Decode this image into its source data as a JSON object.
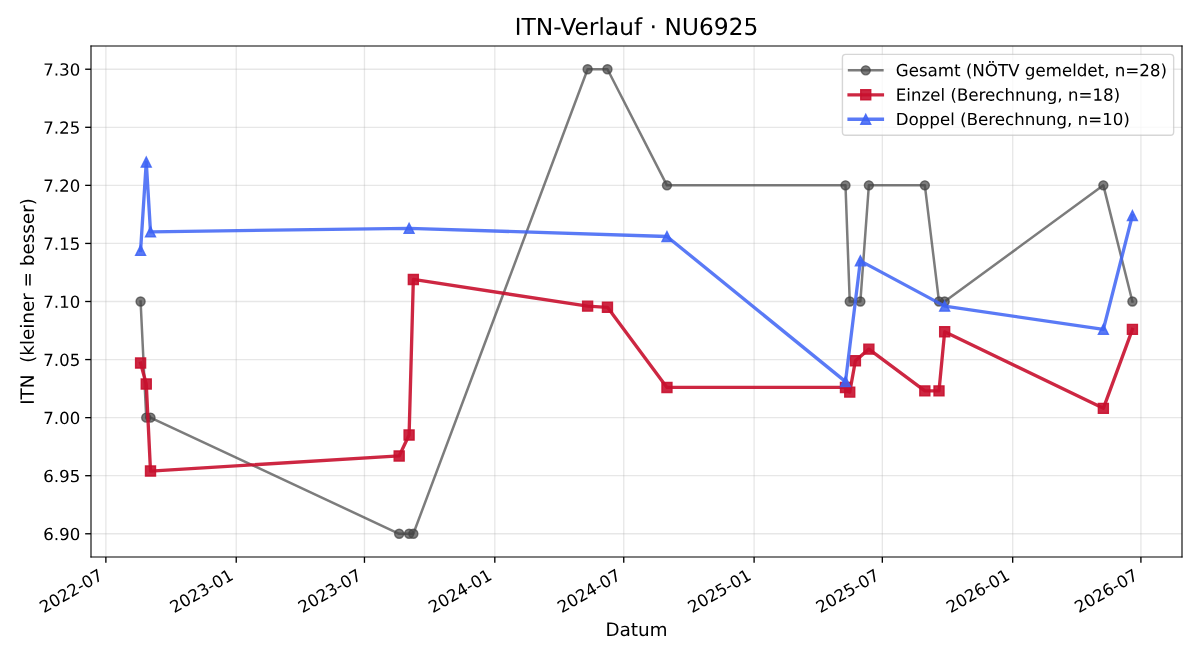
{
  "chart_data": {
    "type": "line",
    "title": "ITN-Verlauf · NU6925",
    "xlabel": "Datum",
    "ylabel": "ITN  (kleiner = besser)",
    "xlim": [
      "2022-06-10",
      "2026-08-28"
    ],
    "xticks": [
      {
        "value": "2022-07-01",
        "label": "2022-07"
      },
      {
        "value": "2023-01-01",
        "label": "2023-01"
      },
      {
        "value": "2023-07-01",
        "label": "2023-07"
      },
      {
        "value": "2024-01-01",
        "label": "2024-01"
      },
      {
        "value": "2024-07-01",
        "label": "2024-07"
      },
      {
        "value": "2025-01-01",
        "label": "2025-01"
      },
      {
        "value": "2025-07-01",
        "label": "2025-07"
      },
      {
        "value": "2026-01-01",
        "label": "2026-01"
      },
      {
        "value": "2026-07-01",
        "label": "2026-07"
      }
    ],
    "ylim": [
      6.88,
      7.32
    ],
    "yticks": [
      {
        "value": 6.9,
        "label": "6.90"
      },
      {
        "value": 6.95,
        "label": "6.95"
      },
      {
        "value": 7.0,
        "label": "7.00"
      },
      {
        "value": 7.05,
        "label": "7.05"
      },
      {
        "value": 7.1,
        "label": "7.10"
      },
      {
        "value": 7.15,
        "label": "7.15"
      },
      {
        "value": 7.2,
        "label": "7.20"
      },
      {
        "value": 7.25,
        "label": "7.25"
      },
      {
        "value": 7.3,
        "label": "7.30"
      }
    ],
    "grid": true,
    "legend": "top right",
    "line_style": "solid",
    "series": [
      {
        "name": "Gesamt (NÖTV gemeldet, n=28)",
        "color": "#444444",
        "marker": "circle",
        "x": [
          "2022-08-19",
          "2022-08-27",
          "2022-09-02",
          "2023-08-19",
          "2023-09-02",
          "2023-09-08",
          "2024-05-11",
          "2024-06-08",
          "2024-08-31",
          "2025-05-10",
          "2025-05-16",
          "2025-05-31",
          "2025-06-12",
          "2025-08-30",
          "2025-09-19",
          "2025-09-27",
          "2026-05-09",
          "2026-06-19"
        ],
        "values": [
          7.1,
          7.0,
          7.0,
          6.9,
          6.9,
          6.9,
          7.3,
          7.3,
          7.2,
          7.2,
          7.1,
          7.1,
          7.2,
          7.2,
          7.1,
          7.1,
          7.2,
          7.1
        ]
      },
      {
        "name": "Einzel (Berechnung, n=18)",
        "color": "#c8102e",
        "marker": "square",
        "x": [
          "2022-08-19",
          "2022-08-27",
          "2022-09-02",
          "2023-08-19",
          "2023-09-02",
          "2023-09-08",
          "2024-05-11",
          "2024-06-08",
          "2024-08-31",
          "2025-05-10",
          "2025-05-16",
          "2025-05-24",
          "2025-06-12",
          "2025-08-30",
          "2025-09-19",
          "2025-09-27",
          "2026-05-09",
          "2026-06-19"
        ],
        "values": [
          7.047,
          7.029,
          6.954,
          6.967,
          6.985,
          7.119,
          7.096,
          7.095,
          7.026,
          7.026,
          7.022,
          7.049,
          7.059,
          7.023,
          7.023,
          7.074,
          7.008,
          7.076
        ]
      },
      {
        "name": "Doppel (Berechnung, n=10)",
        "color": "#3d63f5",
        "marker": "triangle",
        "x": [
          "2022-08-19",
          "2022-08-27",
          "2022-09-02",
          "2023-09-02",
          "2024-08-31",
          "2025-05-10",
          "2025-05-31",
          "2025-09-27",
          "2026-05-09",
          "2026-06-19"
        ],
        "values": [
          7.144,
          7.22,
          7.16,
          7.163,
          7.156,
          7.031,
          7.135,
          7.096,
          7.076,
          7.174
        ]
      }
    ]
  }
}
